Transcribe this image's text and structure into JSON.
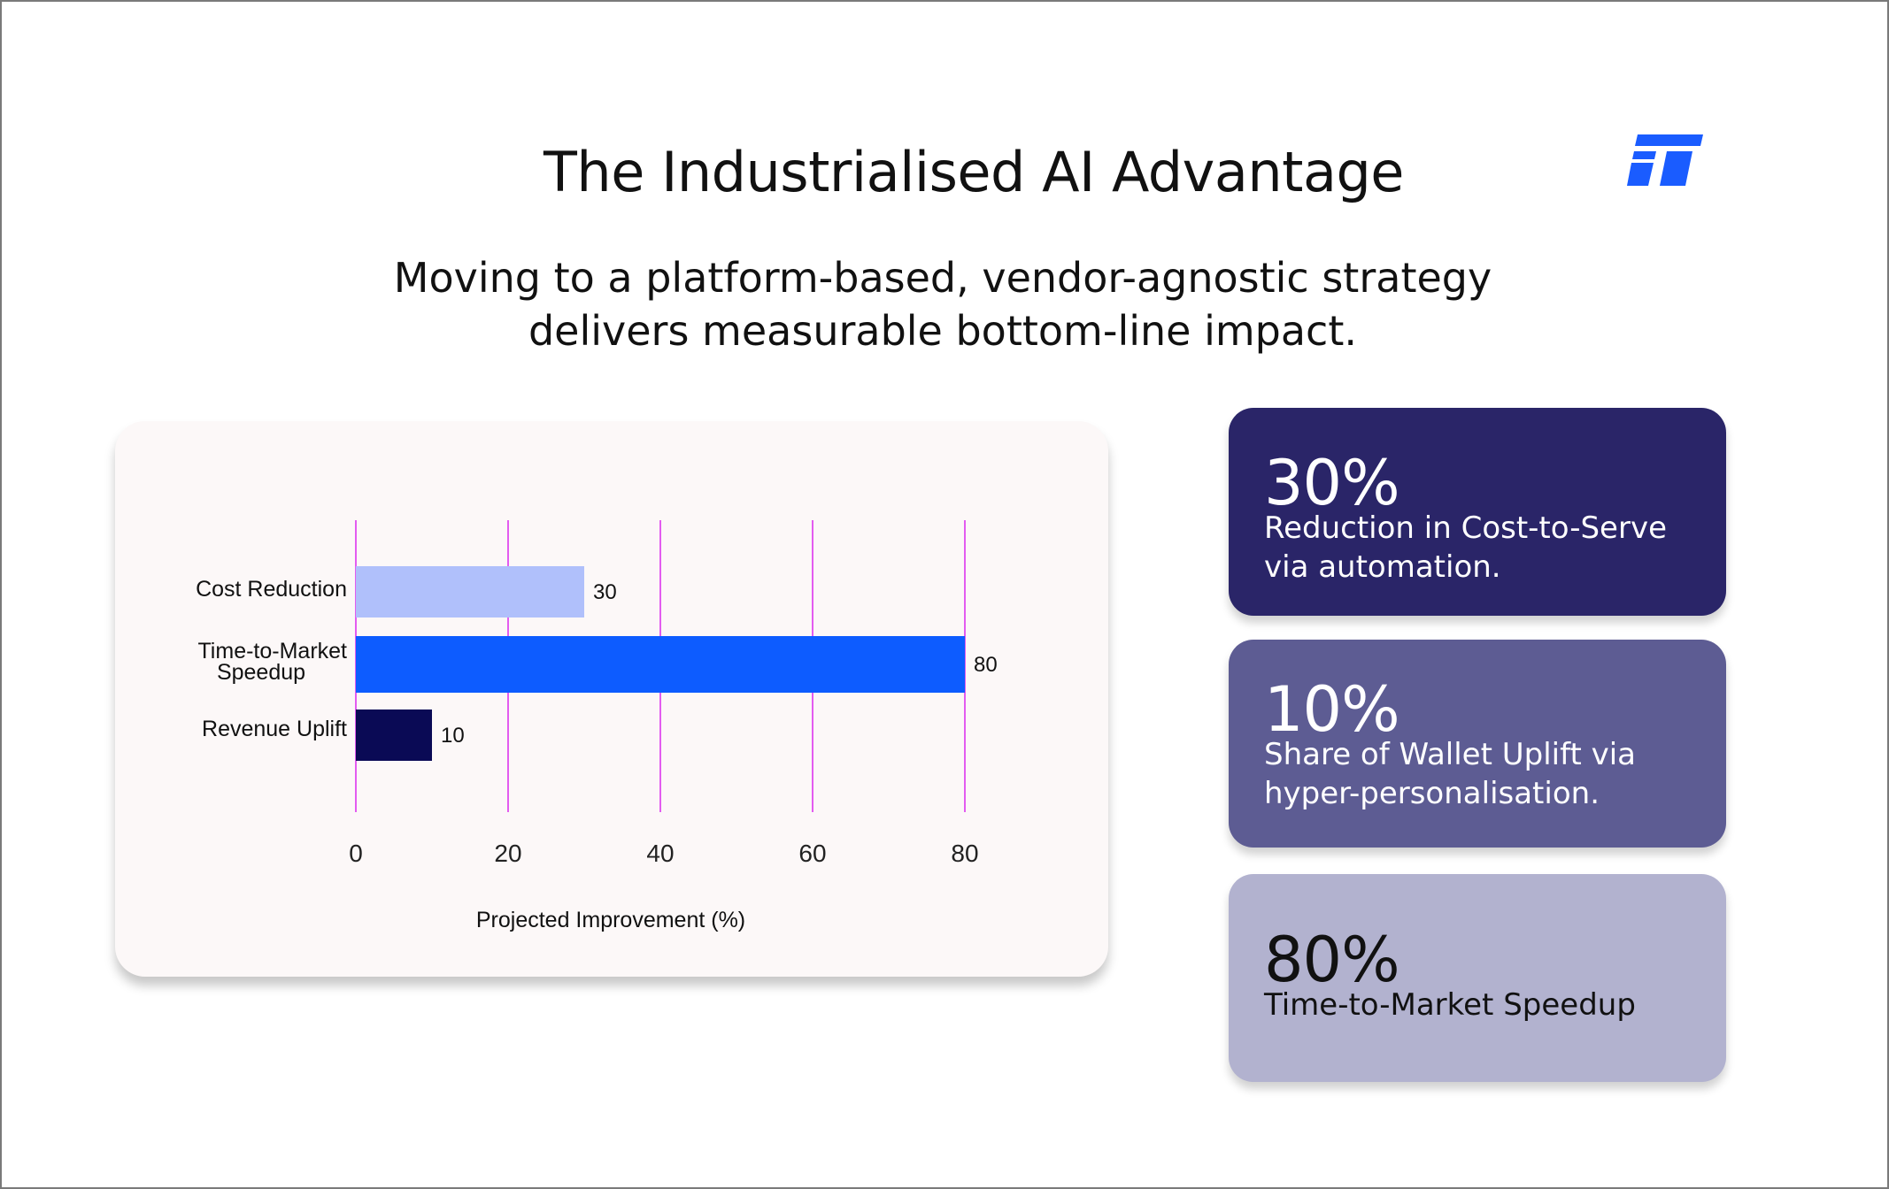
{
  "header": {
    "title": "The Industrialised AI Advantage",
    "subtitle_line1": "Moving to a platform-based, vendor-agnostic strategy",
    "subtitle_line2": "delivers measurable bottom-line impact."
  },
  "logo": {
    "icon": "ft-logo-icon",
    "color": "#1a5cff"
  },
  "chart_data": {
    "type": "bar",
    "orientation": "horizontal",
    "categories": [
      [
        "Cost Reduction"
      ],
      [
        "Time-to-Market",
        "Speedup"
      ],
      [
        "Revenue Uplift"
      ]
    ],
    "values": [
      30,
      80,
      10
    ],
    "colors": [
      "#b0c0fb",
      "#0d5cff",
      "#0a0a55"
    ],
    "data_labels": [
      "30",
      "80",
      "10"
    ],
    "xlabel": "Projected Improvement (%)",
    "xticks": [
      "0",
      "20",
      "40",
      "60",
      "80"
    ],
    "xtick_values": [
      0,
      20,
      40,
      60,
      80
    ],
    "xlim": [
      0,
      80
    ],
    "grid": true,
    "grid_color": "#e35cf0"
  },
  "stats": [
    {
      "value": "30%",
      "desc_line1": "Reduction in Cost-to-Serve",
      "desc_line2": "via automation."
    },
    {
      "value": "10%",
      "desc_line1": "Share of Wallet Uplift via",
      "desc_line2": "hyper-personalisation."
    },
    {
      "value": "80%",
      "desc_line1": "Time-to-Market Speedup",
      "desc_line2": ""
    }
  ]
}
